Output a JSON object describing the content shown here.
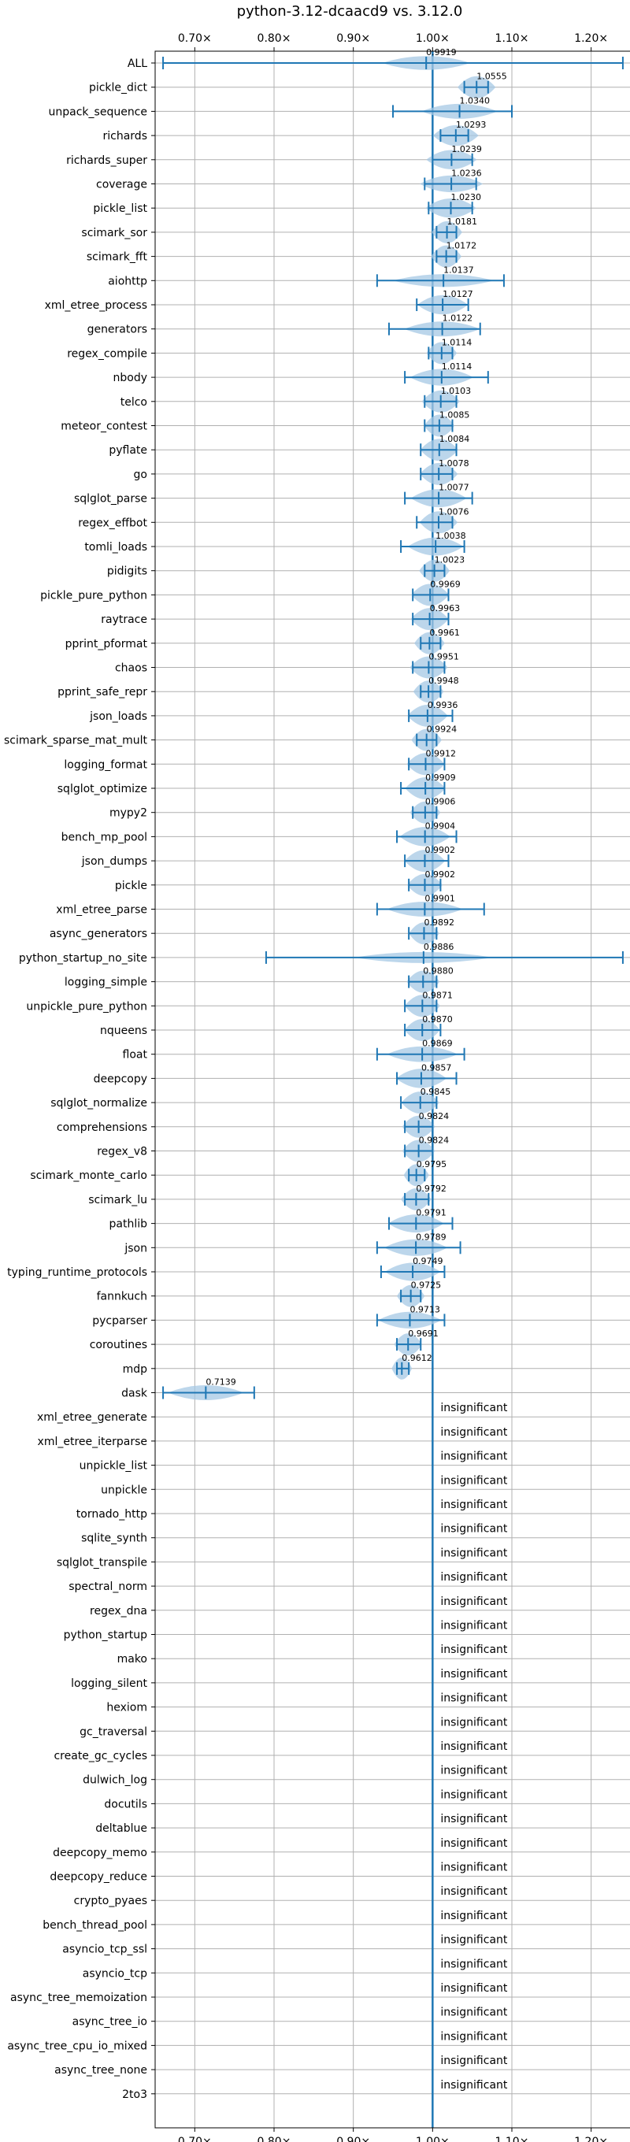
{
  "chart_data": {
    "type": "violin",
    "title": "python-3.12-dcaacd9 vs. 3.12.0",
    "xlim": [
      0.65,
      1.25
    ],
    "x_ticks": [
      0.7,
      0.8,
      0.9,
      1.0,
      1.1,
      1.2
    ],
    "x_tick_labels": [
      "0.70×",
      "0.80×",
      "0.90×",
      "1.00×",
      "1.10×",
      "1.20×"
    ],
    "reference_line": 1.0,
    "accent_color": "#1f77b4",
    "violin_color": "#a6c8e4",
    "grid": true,
    "categories": [
      "ALL",
      "pickle_dict",
      "unpack_sequence",
      "richards",
      "richards_super",
      "coverage",
      "pickle_list",
      "scimark_sor",
      "scimark_fft",
      "aiohttp",
      "xml_etree_process",
      "generators",
      "regex_compile",
      "nbody",
      "telco",
      "meteor_contest",
      "pyflate",
      "go",
      "sqlglot_parse",
      "regex_effbot",
      "tomli_loads",
      "pidigits",
      "pickle_pure_python",
      "raytrace",
      "pprint_pformat",
      "chaos",
      "pprint_safe_repr",
      "json_loads",
      "scimark_sparse_mat_mult",
      "logging_format",
      "sqlglot_optimize",
      "mypy2",
      "bench_mp_pool",
      "json_dumps",
      "pickle",
      "xml_etree_parse",
      "async_generators",
      "python_startup_no_site",
      "logging_simple",
      "unpickle_pure_python",
      "nqueens",
      "float",
      "deepcopy",
      "sqlglot_normalize",
      "comprehensions",
      "regex_v8",
      "scimark_monte_carlo",
      "scimark_lu",
      "pathlib",
      "json",
      "typing_runtime_protocols",
      "fannkuch",
      "pycparser",
      "coroutines",
      "mdp",
      "dask",
      "xml_etree_generate",
      "xml_etree_iterparse",
      "unpickle_list",
      "unpickle",
      "tornado_http",
      "sqlite_synth",
      "sqlglot_transpile",
      "spectral_norm",
      "regex_dna",
      "python_startup",
      "mako",
      "logging_silent",
      "hexiom",
      "gc_traversal",
      "create_gc_cycles",
      "dulwich_log",
      "docutils",
      "deltablue",
      "deepcopy_memo",
      "deepcopy_reduce",
      "crypto_pyaes",
      "bench_thread_pool",
      "asyncio_tcp_ssl",
      "asyncio_tcp",
      "async_tree_memoization",
      "async_tree_io",
      "async_tree_cpu_io_mixed",
      "async_tree_none",
      "2to3"
    ],
    "significant": [
      {
        "name": "ALL",
        "value_label": "0.9919",
        "median": 0.9919,
        "min": 0.66,
        "max": 1.24,
        "width": 0.035,
        "spread": 0.035
      },
      {
        "name": "pickle_dict",
        "value_label": "1.0555",
        "median": 1.0555,
        "min": 1.04,
        "max": 1.07,
        "width": 0.015,
        "spread": 0.012
      },
      {
        "name": "unpack_sequence",
        "value_label": "1.0340",
        "median": 1.034,
        "min": 0.95,
        "max": 1.1,
        "width": 0.03,
        "spread": 0.03
      },
      {
        "name": "richards",
        "value_label": "1.0293",
        "median": 1.0293,
        "min": 1.01,
        "max": 1.045,
        "width": 0.018,
        "spread": 0.015
      },
      {
        "name": "richards_super",
        "value_label": "1.0239",
        "median": 1.0239,
        "min": 1.0,
        "max": 1.05,
        "width": 0.02,
        "spread": 0.018
      },
      {
        "name": "coverage",
        "value_label": "1.0236",
        "median": 1.0236,
        "min": 0.99,
        "max": 1.055,
        "width": 0.025,
        "spread": 0.02
      },
      {
        "name": "pickle_list",
        "value_label": "1.0230",
        "median": 1.023,
        "min": 0.995,
        "max": 1.05,
        "width": 0.02,
        "spread": 0.018
      },
      {
        "name": "scimark_sor",
        "value_label": "1.0181",
        "median": 1.0181,
        "min": 1.005,
        "max": 1.03,
        "width": 0.012,
        "spread": 0.01
      },
      {
        "name": "scimark_fft",
        "value_label": "1.0172",
        "median": 1.0172,
        "min": 1.005,
        "max": 1.03,
        "width": 0.012,
        "spread": 0.01
      },
      {
        "name": "aiohttp",
        "value_label": "1.0137",
        "median": 1.0137,
        "min": 0.93,
        "max": 1.09,
        "width": 0.04,
        "spread": 0.035
      },
      {
        "name": "xml_etree_process",
        "value_label": "1.0127",
        "median": 1.0127,
        "min": 0.98,
        "max": 1.045,
        "width": 0.02,
        "spread": 0.02
      },
      {
        "name": "generators",
        "value_label": "1.0122",
        "median": 1.0122,
        "min": 0.945,
        "max": 1.06,
        "width": 0.03,
        "spread": 0.028
      },
      {
        "name": "regex_compile",
        "value_label": "1.0114",
        "median": 1.0114,
        "min": 0.995,
        "max": 1.025,
        "width": 0.012,
        "spread": 0.012
      },
      {
        "name": "nbody",
        "value_label": "1.0114",
        "median": 1.0114,
        "min": 0.965,
        "max": 1.07,
        "width": 0.025,
        "spread": 0.025
      },
      {
        "name": "telco",
        "value_label": "1.0103",
        "median": 1.0103,
        "min": 0.99,
        "max": 1.03,
        "width": 0.015,
        "spread": 0.014
      },
      {
        "name": "meteor_contest",
        "value_label": "1.0085",
        "median": 1.0085,
        "min": 0.99,
        "max": 1.025,
        "width": 0.012,
        "spread": 0.012
      },
      {
        "name": "pyflate",
        "value_label": "1.0084",
        "median": 1.0084,
        "min": 0.985,
        "max": 1.03,
        "width": 0.015,
        "spread": 0.015
      },
      {
        "name": "go",
        "value_label": "1.0078",
        "median": 1.0078,
        "min": 0.985,
        "max": 1.025,
        "width": 0.015,
        "spread": 0.014
      },
      {
        "name": "sqlglot_parse",
        "value_label": "1.0077",
        "median": 1.0077,
        "min": 0.965,
        "max": 1.05,
        "width": 0.022,
        "spread": 0.022
      },
      {
        "name": "regex_effbot",
        "value_label": "1.0076",
        "median": 1.0076,
        "min": 0.98,
        "max": 1.025,
        "width": 0.015,
        "spread": 0.015
      },
      {
        "name": "tomli_loads",
        "value_label": "1.0038",
        "median": 1.0038,
        "min": 0.96,
        "max": 1.04,
        "width": 0.022,
        "spread": 0.022
      },
      {
        "name": "pidigits",
        "value_label": "1.0023",
        "median": 1.0023,
        "min": 0.99,
        "max": 1.015,
        "width": 0.012,
        "spread": 0.01
      },
      {
        "name": "pickle_pure_python",
        "value_label": "0.9969",
        "median": 0.9969,
        "min": 0.975,
        "max": 1.02,
        "width": 0.015,
        "spread": 0.014
      },
      {
        "name": "raytrace",
        "value_label": "0.9963",
        "median": 0.9963,
        "min": 0.975,
        "max": 1.02,
        "width": 0.015,
        "spread": 0.014
      },
      {
        "name": "pprint_pformat",
        "value_label": "0.9961",
        "median": 0.9961,
        "min": 0.985,
        "max": 1.01,
        "width": 0.012,
        "spread": 0.01
      },
      {
        "name": "chaos",
        "value_label": "0.9951",
        "median": 0.9951,
        "min": 0.975,
        "max": 1.015,
        "width": 0.015,
        "spread": 0.014
      },
      {
        "name": "pprint_safe_repr",
        "value_label": "0.9948",
        "median": 0.9948,
        "min": 0.985,
        "max": 1.01,
        "width": 0.012,
        "spread": 0.01
      },
      {
        "name": "json_loads",
        "value_label": "0.9936",
        "median": 0.9936,
        "min": 0.97,
        "max": 1.025,
        "width": 0.016,
        "spread": 0.016
      },
      {
        "name": "scimark_sparse_mat_mult",
        "value_label": "0.9924",
        "median": 0.9924,
        "min": 0.98,
        "max": 1.005,
        "width": 0.012,
        "spread": 0.01
      },
      {
        "name": "logging_format",
        "value_label": "0.9912",
        "median": 0.9912,
        "min": 0.97,
        "max": 1.015,
        "width": 0.015,
        "spread": 0.014
      },
      {
        "name": "sqlglot_optimize",
        "value_label": "0.9909",
        "median": 0.9909,
        "min": 0.96,
        "max": 1.015,
        "width": 0.016,
        "spread": 0.016
      },
      {
        "name": "mypy2",
        "value_label": "0.9906",
        "median": 0.9906,
        "min": 0.975,
        "max": 1.005,
        "width": 0.012,
        "spread": 0.012
      },
      {
        "name": "bench_mp_pool",
        "value_label": "0.9904",
        "median": 0.9904,
        "min": 0.955,
        "max": 1.03,
        "width": 0.02,
        "spread": 0.02
      },
      {
        "name": "json_dumps",
        "value_label": "0.9902",
        "median": 0.9902,
        "min": 0.965,
        "max": 1.02,
        "width": 0.016,
        "spread": 0.016
      },
      {
        "name": "pickle",
        "value_label": "0.9902",
        "median": 0.9902,
        "min": 0.97,
        "max": 1.01,
        "width": 0.014,
        "spread": 0.013
      },
      {
        "name": "xml_etree_parse",
        "value_label": "0.9901",
        "median": 0.9901,
        "min": 0.93,
        "max": 1.065,
        "width": 0.03,
        "spread": 0.03
      },
      {
        "name": "async_generators",
        "value_label": "0.9892",
        "median": 0.9892,
        "min": 0.97,
        "max": 1.005,
        "width": 0.012,
        "spread": 0.012
      },
      {
        "name": "python_startup_no_site",
        "value_label": "0.9886",
        "median": 0.9886,
        "min": 0.79,
        "max": 1.24,
        "width": 0.055,
        "spread": 0.08
      },
      {
        "name": "logging_simple",
        "value_label": "0.9880",
        "median": 0.988,
        "min": 0.97,
        "max": 1.005,
        "width": 0.013,
        "spread": 0.012
      },
      {
        "name": "unpickle_pure_python",
        "value_label": "0.9871",
        "median": 0.9871,
        "min": 0.965,
        "max": 1.005,
        "width": 0.014,
        "spread": 0.013
      },
      {
        "name": "nqueens",
        "value_label": "0.9870",
        "median": 0.987,
        "min": 0.965,
        "max": 1.01,
        "width": 0.014,
        "spread": 0.013
      },
      {
        "name": "float",
        "value_label": "0.9869",
        "median": 0.9869,
        "min": 0.93,
        "max": 1.04,
        "width": 0.028,
        "spread": 0.028
      },
      {
        "name": "deepcopy",
        "value_label": "0.9857",
        "median": 0.9857,
        "min": 0.955,
        "max": 1.03,
        "width": 0.02,
        "spread": 0.02
      },
      {
        "name": "sqlglot_normalize",
        "value_label": "0.9845",
        "median": 0.9845,
        "min": 0.96,
        "max": 1.005,
        "width": 0.015,
        "spread": 0.014
      },
      {
        "name": "comprehensions",
        "value_label": "0.9824",
        "median": 0.9824,
        "min": 0.965,
        "max": 1.0,
        "width": 0.013,
        "spread": 0.012
      },
      {
        "name": "regex_v8",
        "value_label": "0.9824",
        "median": 0.9824,
        "min": 0.965,
        "max": 1.0,
        "width": 0.013,
        "spread": 0.012
      },
      {
        "name": "scimark_monte_carlo",
        "value_label": "0.9795",
        "median": 0.9795,
        "min": 0.97,
        "max": 0.99,
        "width": 0.01,
        "spread": 0.008
      },
      {
        "name": "scimark_lu",
        "value_label": "0.9792",
        "median": 0.9792,
        "min": 0.965,
        "max": 0.995,
        "width": 0.012,
        "spread": 0.01
      },
      {
        "name": "pathlib",
        "value_label": "0.9791",
        "median": 0.9791,
        "min": 0.945,
        "max": 1.025,
        "width": 0.022,
        "spread": 0.022
      },
      {
        "name": "json",
        "value_label": "0.9789",
        "median": 0.9789,
        "min": 0.93,
        "max": 1.035,
        "width": 0.025,
        "spread": 0.025
      },
      {
        "name": "typing_runtime_protocols",
        "value_label": "0.9749",
        "median": 0.9749,
        "min": 0.935,
        "max": 1.015,
        "width": 0.022,
        "spread": 0.022
      },
      {
        "name": "fannkuch",
        "value_label": "0.9725",
        "median": 0.9725,
        "min": 0.96,
        "max": 0.985,
        "width": 0.011,
        "spread": 0.01
      },
      {
        "name": "pycparser",
        "value_label": "0.9713",
        "median": 0.9713,
        "min": 0.93,
        "max": 1.015,
        "width": 0.025,
        "spread": 0.025
      },
      {
        "name": "coroutines",
        "value_label": "0.9691",
        "median": 0.9691,
        "min": 0.955,
        "max": 0.985,
        "width": 0.011,
        "spread": 0.01
      },
      {
        "name": "mdp",
        "value_label": "0.9612",
        "median": 0.9612,
        "min": 0.955,
        "max": 0.97,
        "width": 0.008,
        "spread": 0.007
      },
      {
        "name": "dask",
        "value_label": "0.7139",
        "median": 0.7139,
        "min": 0.66,
        "max": 0.775,
        "width": 0.03,
        "spread": 0.03
      }
    ],
    "insignificant_label": "insignificant",
    "insignificant": [
      "xml_etree_generate",
      "xml_etree_iterparse",
      "unpickle_list",
      "unpickle",
      "tornado_http",
      "sqlite_synth",
      "sqlglot_transpile",
      "spectral_norm",
      "regex_dna",
      "python_startup",
      "mako",
      "logging_silent",
      "hexiom",
      "gc_traversal",
      "create_gc_cycles",
      "dulwich_log",
      "docutils",
      "deltablue",
      "deepcopy_memo",
      "deepcopy_reduce",
      "crypto_pyaes",
      "bench_thread_pool",
      "asyncio_tcp_ssl",
      "asyncio_tcp",
      "async_tree_memoization",
      "async_tree_io",
      "async_tree_cpu_io_mixed",
      "async_tree_none",
      "2to3"
    ]
  }
}
